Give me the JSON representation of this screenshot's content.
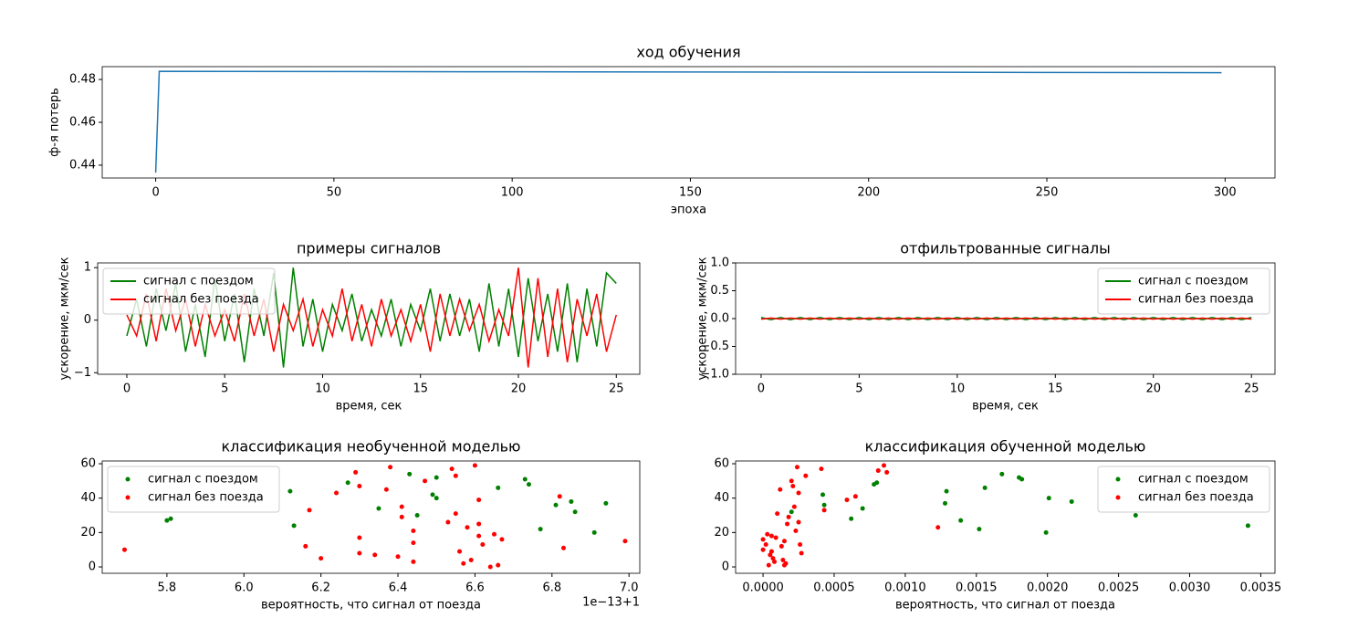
{
  "chart_data": [
    {
      "type": "line",
      "title": "ход обучения",
      "xlabel": "эпоха",
      "ylabel": "ф-я потерь",
      "x": [
        0,
        1,
        50,
        100,
        150,
        200,
        250,
        299
      ],
      "series": [
        {
          "color": "#1f77b4",
          "values": [
            0.4365,
            0.4838,
            0.4837,
            0.4836,
            0.4835,
            0.4834,
            0.4833,
            0.4832
          ]
        }
      ],
      "xlim": [
        -15,
        314
      ],
      "ylim": [
        0.434,
        0.486
      ],
      "xticks": [
        0,
        50,
        100,
        150,
        200,
        250,
        300
      ],
      "yticks": [
        0.44,
        0.46,
        0.48
      ]
    },
    {
      "type": "line",
      "title": "примеры сигналов",
      "xlabel": "время, сек",
      "ylabel": "ускорение, мкм/сек",
      "legend": "upper left",
      "x": [
        0,
        0.5,
        1,
        1.5,
        2,
        2.5,
        3,
        3.5,
        4,
        4.5,
        5,
        5.5,
        6,
        6.5,
        7,
        7.5,
        8,
        8.5,
        9,
        9.5,
        10,
        10.5,
        11,
        11.5,
        12,
        12.5,
        13,
        13.5,
        14,
        14.5,
        15,
        15.5,
        16,
        16.5,
        17,
        17.5,
        18,
        18.5,
        19,
        19.5,
        20,
        20.5,
        21,
        21.5,
        22,
        22.5,
        23,
        23.5,
        24,
        24.5,
        25
      ],
      "series": [
        {
          "name": "сигнал с поездом",
          "color": "#008000",
          "values": [
            -0.3,
            0.4,
            -0.5,
            0.6,
            -0.2,
            0.7,
            -0.6,
            0.3,
            -0.7,
            0.8,
            -0.4,
            0.5,
            -0.8,
            0.6,
            -0.3,
            0.9,
            -0.9,
            1.0,
            -0.5,
            0.4,
            -0.6,
            0.3,
            -0.2,
            0.5,
            -0.4,
            0.2,
            -0.3,
            0.4,
            -0.5,
            0.3,
            -0.2,
            0.6,
            -0.4,
            0.5,
            -0.3,
            0.4,
            -0.6,
            0.7,
            -0.5,
            0.6,
            -0.7,
            0.8,
            -0.4,
            0.5,
            -0.6,
            0.7,
            -0.8,
            0.6,
            -0.5,
            0.9,
            0.7
          ]
        },
        {
          "name": "сигнал без поезда",
          "color": "#ff0000",
          "values": [
            0.1,
            -0.3,
            0.5,
            -0.4,
            0.6,
            -0.2,
            0.4,
            -0.5,
            0.3,
            -0.3,
            0.2,
            -0.4,
            0.5,
            -0.3,
            0.4,
            -0.6,
            0.3,
            -0.2,
            0.4,
            -0.5,
            0.2,
            -0.3,
            0.6,
            -0.4,
            0.3,
            -0.5,
            0.4,
            -0.3,
            0.2,
            -0.4,
            0.3,
            -0.6,
            0.5,
            -0.3,
            0.4,
            -0.2,
            0.3,
            -0.4,
            0.2,
            -0.3,
            1.0,
            -0.9,
            0.8,
            -0.7,
            0.6,
            -0.8,
            0.4,
            -0.3,
            0.5,
            -0.6,
            0.1
          ]
        }
      ],
      "xlim": [
        -1.49,
        26.2
      ],
      "ylim": [
        -1.03,
        1.09
      ],
      "xticks": [
        0,
        5,
        10,
        15,
        20,
        25
      ],
      "yticks": [
        {
          "value": -1,
          "label": "−1"
        },
        0,
        1
      ]
    },
    {
      "type": "line",
      "title": "отфильтрованные сигналы",
      "xlabel": "время, сек",
      "ylabel": "ускорение, мкм/сек",
      "legend": "upper right",
      "x": [
        0,
        0.5,
        1,
        1.5,
        2,
        2.5,
        3,
        3.5,
        4,
        4.5,
        5,
        5.5,
        6,
        6.5,
        7,
        7.5,
        8,
        8.5,
        9,
        9.5,
        10,
        10.5,
        11,
        11.5,
        12,
        12.5,
        13,
        13.5,
        14,
        14.5,
        15,
        15.5,
        16,
        16.5,
        17,
        17.5,
        18,
        18.5,
        19,
        19.5,
        20,
        20.5,
        21,
        21.5,
        22,
        22.5,
        23,
        23.5,
        24,
        24.5,
        25
      ],
      "series": [
        {
          "name": "сигнал с поездом",
          "color": "#008000",
          "values": [
            0.02,
            -0.02,
            0.02,
            -0.02,
            0.02,
            -0.02,
            0.02,
            -0.02,
            0.02,
            -0.02,
            0.02,
            -0.02,
            0.02,
            -0.02,
            0.02,
            -0.02,
            0.02,
            -0.02,
            0.02,
            -0.02,
            0.02,
            -0.02,
            0.02,
            -0.02,
            0.02,
            -0.02,
            0.02,
            -0.02,
            0.02,
            -0.02,
            0.02,
            -0.02,
            0.02,
            -0.02,
            0.02,
            -0.02,
            0.02,
            -0.02,
            0.02,
            -0.02,
            0.02,
            -0.02,
            0.02,
            -0.02,
            0.02,
            -0.02,
            0.02,
            -0.02,
            0.02,
            -0.02,
            0.02
          ]
        },
        {
          "name": "сигнал без поезда",
          "color": "#ff0000",
          "values": [
            -0.01,
            0.01,
            -0.01,
            0.01,
            -0.01,
            0.01,
            -0.01,
            0.01,
            -0.01,
            0.01,
            -0.01,
            0.01,
            -0.01,
            0.01,
            -0.01,
            0.01,
            -0.01,
            0.01,
            -0.01,
            0.01,
            -0.01,
            0.01,
            -0.01,
            0.01,
            -0.01,
            0.01,
            -0.01,
            0.01,
            -0.01,
            0.01,
            -0.01,
            0.01,
            -0.01,
            0.01,
            -0.01,
            0.01,
            -0.01,
            0.01,
            -0.01,
            0.01,
            -0.01,
            0.01,
            -0.01,
            0.01,
            -0.01,
            0.01,
            -0.01,
            0.01,
            -0.01,
            0.01,
            -0.01
          ]
        }
      ],
      "xlim": [
        -1.3,
        26.2
      ],
      "ylim": [
        -1,
        1
      ],
      "xticks": [
        0,
        5,
        10,
        15,
        20,
        25
      ],
      "yticks": [
        {
          "value": -1,
          "label": "−1.0"
        },
        {
          "value": -0.5,
          "label": "−0.5"
        },
        {
          "value": 0,
          "label": "0.0"
        },
        0.5,
        {
          "value": 1,
          "label": "1.0"
        }
      ]
    },
    {
      "type": "scatter",
      "title": "классификация необученной моделью",
      "xlabel": "вероятность, что сигнал от поезда",
      "offset_text": "1e−13+1",
      "legend": "upper left",
      "series": [
        {
          "name": "сигнал с поездом",
          "color": "#008000",
          "x": [
            5.8,
            5.81,
            6.12,
            6.13,
            6.27,
            6.35,
            6.43,
            6.45,
            6.49,
            6.5,
            6.5,
            6.66,
            6.73,
            6.74,
            6.77,
            6.81,
            6.85,
            6.86,
            6.91,
            6.94
          ],
          "values": [
            27,
            28,
            44,
            24,
            49,
            34,
            54,
            30,
            42,
            40,
            52,
            46,
            51,
            48,
            22,
            36,
            38,
            32,
            20,
            37
          ]
        },
        {
          "name": "сигнал без поезда",
          "color": "#ff0000",
          "x": [
            5.69,
            6.16,
            6.17,
            6.2,
            6.24,
            6.29,
            6.3,
            6.3,
            6.3,
            6.34,
            6.37,
            6.38,
            6.4,
            6.41,
            6.41,
            6.44,
            6.44,
            6.44,
            6.47,
            6.53,
            6.54,
            6.55,
            6.55,
            6.56,
            6.57,
            6.58,
            6.59,
            6.6,
            6.61,
            6.61,
            6.61,
            6.62,
            6.64,
            6.65,
            6.66,
            6.67,
            6.82,
            6.83,
            6.99
          ],
          "values": [
            10,
            12,
            33,
            5,
            43,
            55,
            47,
            17,
            8,
            7,
            45,
            58,
            6,
            29,
            35,
            3,
            14,
            21,
            50,
            26,
            57,
            53,
            31,
            9,
            2,
            23,
            4,
            59,
            18,
            25,
            39,
            13,
            0,
            19,
            1,
            16,
            41,
            11,
            15
          ]
        }
      ],
      "xlim": [
        5.632,
        7.028
      ],
      "ylim": [
        -3.7,
        61.6
      ],
      "xticks": [
        5.8,
        {
          "value": 6,
          "label": "6.0"
        },
        6.2,
        6.4,
        6.6,
        6.8,
        {
          "value": 7,
          "label": "7.0"
        }
      ],
      "yticks": [
        0,
        20,
        40,
        60
      ]
    },
    {
      "type": "scatter",
      "title": "классификация обученной моделью",
      "xlabel": "вероятность, что сигнал от поезда",
      "legend": "upper right",
      "series": [
        {
          "name": "сигнал с поездом",
          "color": "#008000",
          "x": [
            0.0002,
            0.00042,
            0.00043,
            0.00062,
            0.0007,
            0.00078,
            0.0008,
            0.00128,
            0.00129,
            0.00139,
            0.00152,
            0.00156,
            0.00168,
            0.0018,
            0.00182,
            0.00199,
            0.00201,
            0.00217,
            0.00262,
            0.00341
          ],
          "values": [
            32,
            42,
            36,
            28,
            34,
            48,
            49,
            37,
            44,
            27,
            22,
            46,
            54,
            52,
            51,
            20,
            40,
            38,
            30,
            24
          ]
        },
        {
          "name": "сигнал без поезда",
          "color": "#ff0000",
          "x": [
            0.0,
            0.0,
            2e-05,
            3e-05,
            4e-05,
            5e-05,
            6e-05,
            6e-05,
            7e-05,
            8e-05,
            9e-05,
            0.0001,
            0.00012,
            0.00013,
            0.00014,
            0.00015,
            0.00015,
            0.00016,
            0.00017,
            0.00018,
            0.0002,
            0.00021,
            0.00022,
            0.00023,
            0.00024,
            0.00025,
            0.00025,
            0.00026,
            0.00027,
            0.0003,
            0.00041,
            0.00043,
            0.00059,
            0.00065,
            0.00081,
            0.00085,
            0.00087,
            0.00123
          ],
          "values": [
            10,
            16,
            13,
            19,
            1,
            7,
            9,
            18,
            5,
            3,
            17,
            31,
            45,
            12,
            4,
            15,
            1,
            2,
            25,
            29,
            50,
            47,
            35,
            21,
            58,
            43,
            26,
            13,
            8,
            53,
            57,
            33,
            39,
            41,
            56,
            59,
            55,
            23
          ]
        }
      ],
      "xlim": [
        -0.000193,
        0.0036
      ],
      "ylim": [
        -3.7,
        61.6
      ],
      "xticks": [
        {
          "value": 0,
          "label": "0.0000"
        },
        0.0005,
        {
          "value": 0.001,
          "label": "0.0010"
        },
        0.0015,
        {
          "value": 0.002,
          "label": "0.0020"
        },
        0.0025,
        {
          "value": 0.003,
          "label": "0.0030"
        },
        0.0035
      ],
      "yticks": [
        0,
        20,
        40,
        60
      ]
    }
  ]
}
